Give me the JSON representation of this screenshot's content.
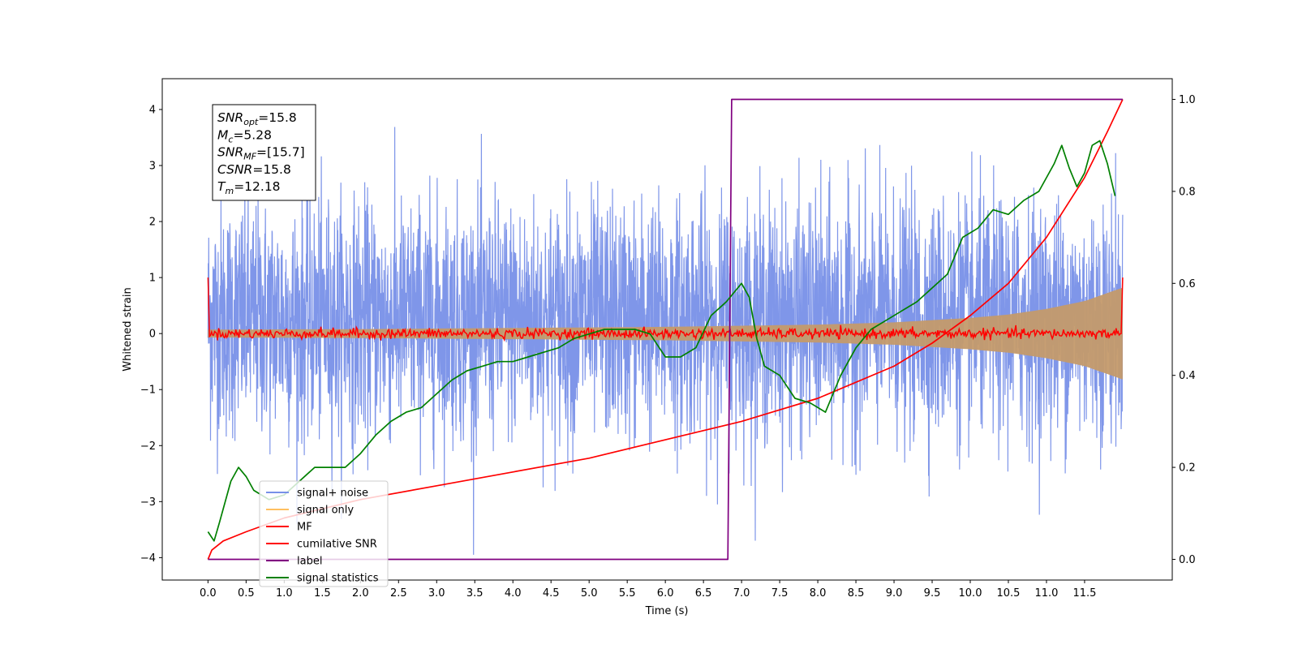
{
  "chart_data": {
    "type": "line",
    "xlabel": "Time (s)",
    "ylabel": "Whitened strain",
    "xlim": [
      -0.6,
      12.65
    ],
    "ylim": [
      -4.4,
      4.55
    ],
    "y2lim": [
      -0.045,
      1.045
    ],
    "x_ticks": [
      0.0,
      0.5,
      1.0,
      1.5,
      2.0,
      2.5,
      3.0,
      3.5,
      4.0,
      4.5,
      5.0,
      5.5,
      6.0,
      6.5,
      7.0,
      7.5,
      8.0,
      8.5,
      9.0,
      9.5,
      10.0,
      10.5,
      11.0,
      11.5
    ],
    "x_tick_labels": [
      "0.0",
      "0.5",
      "1.0",
      "1.5",
      "2.0",
      "2.5",
      "3.0",
      "3.5",
      "4.0",
      "4.5",
      "5.0",
      "5.5",
      "6.0",
      "6.5",
      "7.0",
      "7.5",
      "8.0",
      "8.5",
      "9.0",
      "9.5",
      "10.0",
      "10.5",
      "11.0",
      "11.5"
    ],
    "y_ticks": [
      4,
      3,
      2,
      1,
      0,
      -1,
      -2,
      -3,
      -4
    ],
    "y_tick_labels": [
      "4",
      "3",
      "2",
      "1",
      "0",
      "−1",
      "−2",
      "−3",
      "−4"
    ],
    "y2_ticks": [
      1.0,
      0.8,
      0.6,
      0.4,
      0.2,
      0.0
    ],
    "y2_tick_labels": [
      "1.0",
      "0.8",
      "0.6",
      "0.4",
      "0.2",
      "0.0"
    ],
    "grid": false,
    "legend_position": "lower-left",
    "annotation": {
      "lines": [
        {
          "base": "SNR",
          "sub": "opt",
          "value": "=15.8"
        },
        {
          "base": "M",
          "sub": "c",
          "value": "=5.28"
        },
        {
          "base": "SNR",
          "sub": "MF",
          "value": "=[15.7]"
        },
        {
          "base": "CSNR",
          "sub": "",
          "value": "=15.8"
        },
        {
          "base": "T",
          "sub": "m",
          "value": "=12.18"
        }
      ]
    },
    "series": [
      {
        "name": "signal+ noise",
        "axis": "left",
        "color": "#7890e8",
        "description_values": {
          "x_start": 0.0,
          "x_end": 12.0,
          "typical_range": [
            -2.0,
            2.5
          ],
          "max": 4.15,
          "min": -3.95
        }
      },
      {
        "name": "signal only",
        "axis": "left",
        "color": "#c49a6c",
        "envelope": {
          "x": [
            0.0,
            2.0,
            4.0,
            6.0,
            8.0,
            9.0,
            10.0,
            10.5,
            11.0,
            11.5,
            12.0
          ],
          "amp": [
            0.07,
            0.08,
            0.1,
            0.12,
            0.16,
            0.2,
            0.28,
            0.34,
            0.44,
            0.58,
            0.82
          ]
        }
      },
      {
        "name": "MF",
        "axis": "left",
        "color": "#ff0000",
        "endpoints": {
          "x": [
            0.0,
            12.0
          ],
          "y": [
            1.0,
            1.0
          ]
        },
        "typical_range": [
          -0.12,
          0.15
        ]
      },
      {
        "name": "cumilative SNR",
        "axis": "right",
        "color": "#ff0000",
        "x": [
          0.0,
          0.05,
          0.2,
          0.5,
          1.0,
          2.0,
          3.0,
          4.0,
          5.0,
          6.0,
          7.0,
          8.0,
          9.0,
          9.5,
          10.0,
          10.5,
          11.0,
          11.5,
          11.8,
          12.0
        ],
        "y": [
          0.0,
          0.02,
          0.04,
          0.06,
          0.09,
          0.13,
          0.16,
          0.19,
          0.22,
          0.26,
          0.3,
          0.35,
          0.42,
          0.47,
          0.53,
          0.6,
          0.7,
          0.83,
          0.93,
          1.0
        ]
      },
      {
        "name": "label",
        "axis": "right",
        "color": "#800080",
        "x": [
          0.0,
          6.82,
          6.87,
          12.0
        ],
        "y": [
          0.0,
          0.0,
          1.0,
          1.0
        ]
      },
      {
        "name": "signal statistics",
        "axis": "right",
        "color": "#008000",
        "x": [
          0.0,
          0.08,
          0.15,
          0.3,
          0.4,
          0.5,
          0.6,
          0.7,
          0.8,
          1.0,
          1.2,
          1.4,
          1.6,
          1.8,
          2.0,
          2.2,
          2.4,
          2.6,
          2.8,
          3.0,
          3.2,
          3.4,
          3.6,
          3.8,
          4.0,
          4.2,
          4.4,
          4.6,
          4.8,
          5.0,
          5.2,
          5.4,
          5.6,
          5.8,
          6.0,
          6.2,
          6.4,
          6.6,
          6.8,
          7.0,
          7.1,
          7.2,
          7.3,
          7.5,
          7.7,
          7.9,
          8.1,
          8.3,
          8.5,
          8.7,
          8.9,
          9.1,
          9.3,
          9.5,
          9.7,
          9.9,
          10.1,
          10.3,
          10.5,
          10.7,
          10.9,
          11.1,
          11.2,
          11.3,
          11.4,
          11.5,
          11.6,
          11.7,
          11.8,
          11.9
        ],
        "y": [
          0.06,
          0.04,
          0.08,
          0.17,
          0.2,
          0.18,
          0.15,
          0.14,
          0.13,
          0.14,
          0.17,
          0.2,
          0.2,
          0.2,
          0.23,
          0.27,
          0.3,
          0.32,
          0.33,
          0.36,
          0.39,
          0.41,
          0.42,
          0.43,
          0.43,
          0.44,
          0.45,
          0.46,
          0.48,
          0.49,
          0.5,
          0.5,
          0.5,
          0.49,
          0.44,
          0.44,
          0.46,
          0.53,
          0.56,
          0.6,
          0.57,
          0.48,
          0.42,
          0.4,
          0.35,
          0.34,
          0.32,
          0.4,
          0.46,
          0.5,
          0.52,
          0.54,
          0.56,
          0.59,
          0.62,
          0.7,
          0.72,
          0.76,
          0.75,
          0.78,
          0.8,
          0.86,
          0.9,
          0.85,
          0.81,
          0.84,
          0.9,
          0.91,
          0.86,
          0.79
        ]
      }
    ]
  }
}
